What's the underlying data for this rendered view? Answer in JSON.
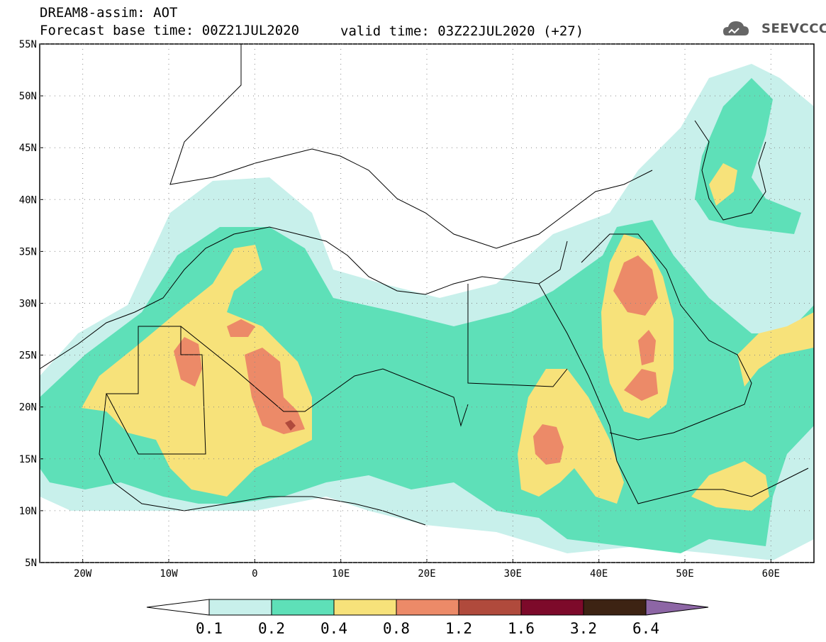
{
  "header": {
    "title": "DREAM8-assim: AOT",
    "base_time": "Forecast base time: 00Z21JUL2020",
    "valid_time": "valid time: 03Z22JUL2020 (+27)"
  },
  "logo": {
    "text": "SEEVCCC",
    "icon": "cloud-icon"
  },
  "axes": {
    "lon_labels": [
      "20W",
      "10W",
      "0",
      "10E",
      "20E",
      "30E",
      "40E",
      "50E",
      "60E"
    ],
    "lat_labels": [
      "55N",
      "50N",
      "45N",
      "40N",
      "35N",
      "30N",
      "25N",
      "20N",
      "15N",
      "10N",
      "5N"
    ],
    "lon_range": [
      -25,
      65
    ],
    "lat_range": [
      5,
      55
    ]
  },
  "colorbar": {
    "labels": [
      "0.1",
      "0.2",
      "0.4",
      "0.8",
      "1.2",
      "1.6",
      "3.2",
      "6.4"
    ],
    "colors": [
      "#c8f0eb",
      "#5ee0b8",
      "#f7e27a",
      "#ec8a68",
      "#b04a3c",
      "#7d0a2a",
      "#3d2313",
      "#8d66a5"
    ]
  },
  "field": {
    "name": "Aerosol optical thickness",
    "levels_colors": {
      "0.1": "#c8f0eb",
      "0.2": "#5ee0b8",
      "0.4": "#f7e27a",
      "0.8": "#ec8a68",
      "1.2": "#b04a3c"
    }
  }
}
